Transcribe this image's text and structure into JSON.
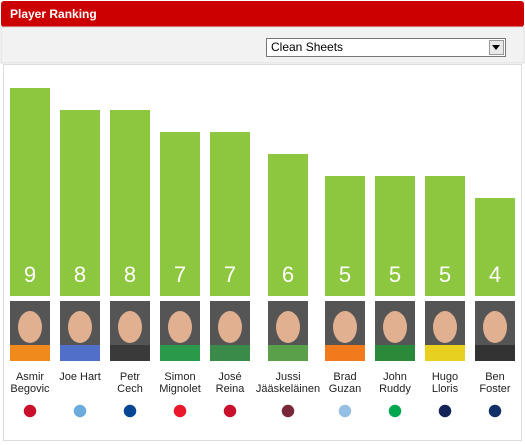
{
  "chart_data": {
    "type": "bar",
    "title": "Player Ranking",
    "metric": "Clean Sheets",
    "categories": [
      [
        "Asmir",
        "Begovic"
      ],
      [
        "Joe Hart"
      ],
      [
        "Petr",
        "Cech"
      ],
      [
        "Simon",
        "Mignolet"
      ],
      [
        "José",
        "Reina"
      ],
      [
        "Jussi",
        "Jääskeläinen"
      ],
      [
        "Brad",
        "Guzan"
      ],
      [
        "John",
        "Ruddy"
      ],
      [
        "Hugo",
        "Lloris"
      ],
      [
        "Ben",
        "Foster"
      ]
    ],
    "values": [
      9,
      8,
      8,
      7,
      7,
      6,
      5,
      5,
      5,
      4
    ],
    "color": "#8dc63f"
  }
}
